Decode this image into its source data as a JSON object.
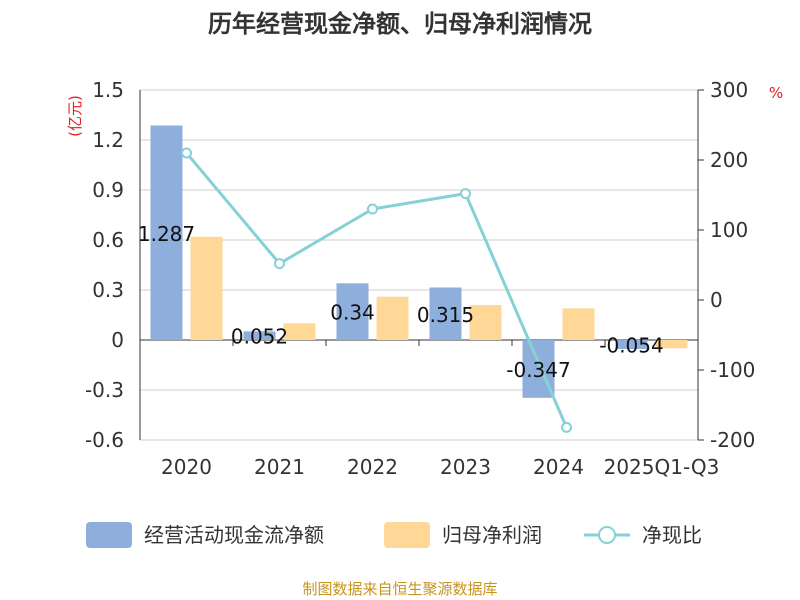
{
  "chart_data": {
    "type": "bar",
    "title": "历年经营现金净额、归母净利润情况",
    "categories": [
      "2020",
      "2021",
      "2022",
      "2023",
      "2024",
      "2025Q1-Q3"
    ],
    "series": [
      {
        "name": "经营活动现金流净额",
        "kind": "bar",
        "axis": "left",
        "color": "#8eaedb",
        "values": [
          1.287,
          0.052,
          0.34,
          0.315,
          -0.347,
          -0.054
        ]
      },
      {
        "name": "归母净利润",
        "kind": "bar",
        "axis": "left",
        "color": "#ffd898",
        "values": [
          0.62,
          0.1,
          0.26,
          0.21,
          0.19,
          -0.05
        ]
      },
      {
        "name": "净现比",
        "kind": "line",
        "axis": "right",
        "color": "#86d1d6",
        "values": [
          210,
          52,
          130,
          152,
          null,
          null
        ],
        "tail_value": -182
      }
    ],
    "data_labels": [
      "1.287",
      "0.052",
      "0.34",
      "0.315",
      "-0.347",
      "-0.054"
    ],
    "y_left": {
      "unit": "(亿元)",
      "ylim": [
        -0.6,
        1.5
      ],
      "ticks": [
        1.5,
        1.2,
        0.9,
        0.6,
        0.3,
        0,
        -0.3,
        -0.6
      ],
      "tick_labels": [
        "1.5",
        "1.2",
        "0.9",
        "0.6",
        "0.3",
        "0",
        "-0.3",
        "-0.6"
      ]
    },
    "y_right": {
      "unit": "%",
      "ylim": [
        -200,
        300
      ],
      "ticks": [
        300,
        200,
        100,
        0,
        -100,
        -200
      ],
      "tick_labels": [
        "300",
        "200",
        "100",
        "0",
        "-100",
        "-200"
      ]
    },
    "grid": true,
    "legend_position": "bottom",
    "source": "制图数据来自恒生聚源数据库"
  }
}
